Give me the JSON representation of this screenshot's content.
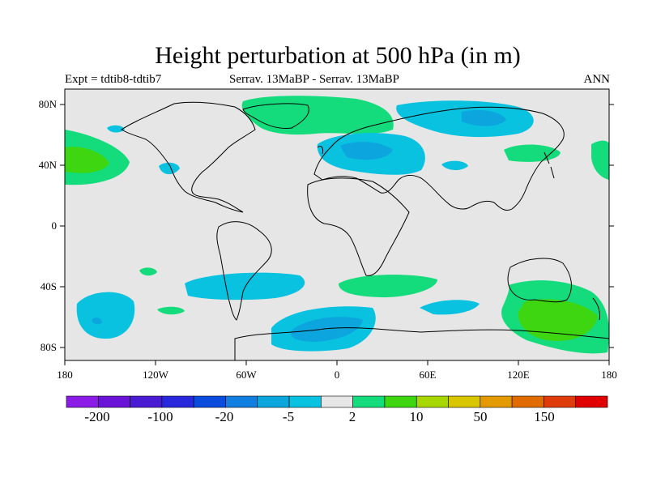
{
  "title": "Height perturbation at 500 hPa (in m)",
  "left_label": "Expt = tdtib8-tdtib7",
  "center_label": "Serrav.   13MaBP - Serrav.   13MaBP",
  "right_label": "ANN",
  "lat_ticks": [
    "80N",
    "40N",
    "0",
    "40S",
    "80S"
  ],
  "lon_ticks": [
    "180",
    "120W",
    "60W",
    "0",
    "60E",
    "120E",
    "180"
  ],
  "colorbar": {
    "colors": [
      "#8b1ce8",
      "#6a13d6",
      "#4b1bd3",
      "#2a28dd",
      "#0b4bde",
      "#117fdf",
      "#0da5de",
      "#08c2e0",
      "#e6e6e6",
      "#14dc7c",
      "#3ed611",
      "#a8d600",
      "#d8c600",
      "#e39a00",
      "#e06c00",
      "#e03b0a",
      "#e00000"
    ],
    "labels": [
      "-200",
      "-100",
      "-20",
      "-5",
      "2",
      "10",
      "50",
      "150"
    ]
  },
  "colors": {
    "ocean_bg": "#e6e6e6",
    "light_green": "#14dc7c",
    "green": "#3ed611",
    "light_blue": "#08c2e0",
    "blue": "#0da5de",
    "mid_blue": "#117fdf"
  }
}
